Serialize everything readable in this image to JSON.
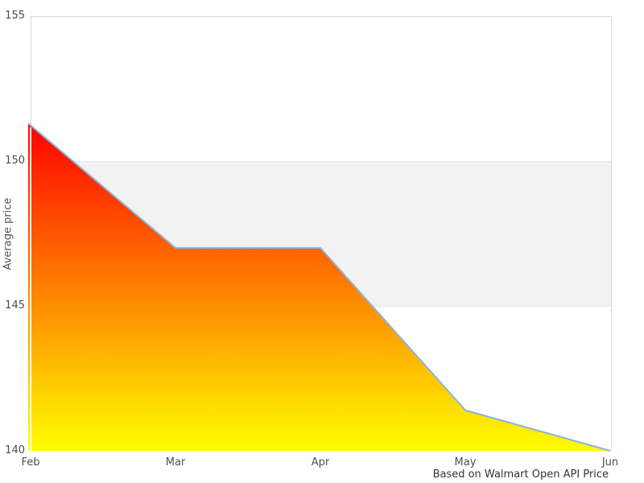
{
  "chart_data": {
    "type": "area",
    "categories": [
      "Feb",
      "Mar",
      "Apr",
      "May",
      "Jun"
    ],
    "values": [
      151.3,
      147,
      147,
      141.4,
      140
    ],
    "title": "",
    "xlabel": "",
    "ylabel": "Average price",
    "caption": "Based on Walmart Open API Price",
    "ylim": [
      140,
      155
    ],
    "yticks": [
      140,
      145,
      150,
      155
    ],
    "grid": "plot-band only",
    "legend": "none",
    "plot_band": {
      "from": 145,
      "to": 150,
      "color": "#f2f2f2",
      "edge_color": "#e6e6e6"
    },
    "colors": {
      "line": "#8ab4dd",
      "fill_gradient_top": "#ff0000",
      "fill_gradient_bottom": "#ffff00",
      "plot_border": "#d6d6d6",
      "tick_label": "#4d4d4d",
      "caption_text": "#333333",
      "background": "#ffffff"
    }
  }
}
